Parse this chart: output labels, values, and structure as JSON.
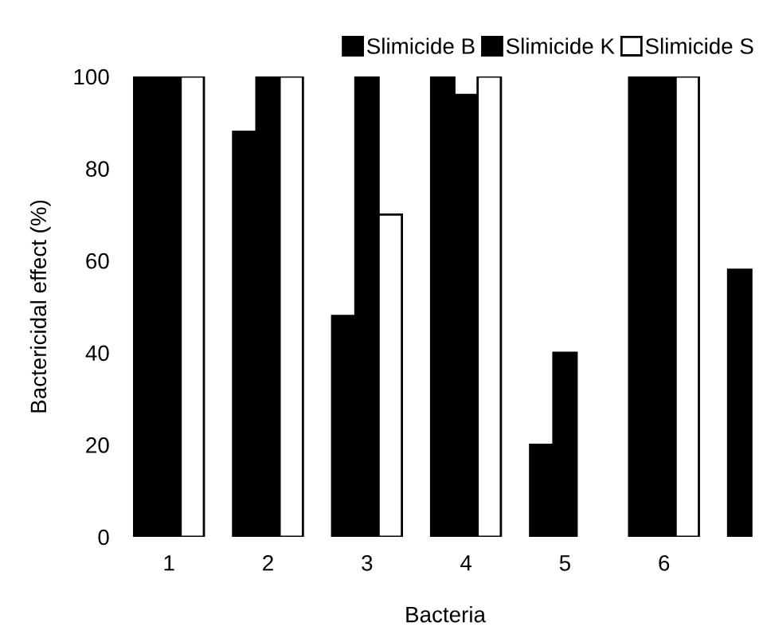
{
  "chart_data": {
    "type": "bar",
    "xlabel": "Bacteria",
    "ylabel": "Bactericidal effect (%)",
    "categories": [
      "1",
      "2",
      "3",
      "4",
      "5",
      "6",
      null
    ],
    "series": [
      {
        "name": "Slimicide B",
        "color": "#000000",
        "values": [
          100,
          88,
          48,
          100,
          20,
          100,
          58
        ]
      },
      {
        "name": "Slimicide K",
        "color": "#000000",
        "values": [
          100,
          100,
          100,
          96,
          40,
          100,
          null
        ]
      },
      {
        "name": "Slimicide S",
        "color": "#ffffff",
        "values": [
          100,
          100,
          70,
          100,
          null,
          100,
          null
        ]
      }
    ],
    "ylim": [
      0,
      100
    ],
    "yticks": [
      0,
      20,
      40,
      60,
      80,
      100
    ],
    "grid": false,
    "legend": "top right"
  }
}
